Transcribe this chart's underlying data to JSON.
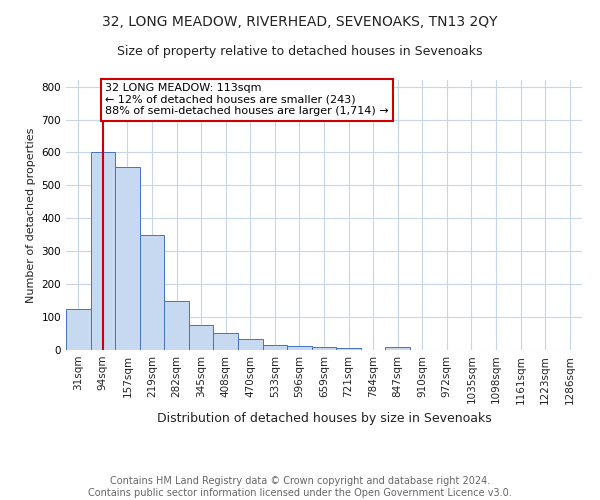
{
  "title": "32, LONG MEADOW, RIVERHEAD, SEVENOAKS, TN13 2QY",
  "subtitle": "Size of property relative to detached houses in Sevenoaks",
  "xlabel": "Distribution of detached houses by size in Sevenoaks",
  "ylabel": "Number of detached properties",
  "categories": [
    "31sqm",
    "94sqm",
    "157sqm",
    "219sqm",
    "282sqm",
    "345sqm",
    "408sqm",
    "470sqm",
    "533sqm",
    "596sqm",
    "659sqm",
    "721sqm",
    "784sqm",
    "847sqm",
    "910sqm",
    "972sqm",
    "1035sqm",
    "1098sqm",
    "1161sqm",
    "1223sqm",
    "1286sqm"
  ],
  "values": [
    125,
    600,
    555,
    350,
    148,
    75,
    52,
    33,
    15,
    12,
    10,
    5,
    0,
    8,
    0,
    0,
    0,
    0,
    0,
    0,
    0
  ],
  "bar_color": "#c6d9f1",
  "bar_edge_color": "#4472c4",
  "vline_x": 1,
  "vline_color": "#cc0000",
  "annotation_text": "32 LONG MEADOW: 113sqm\n← 12% of detached houses are smaller (243)\n88% of semi-detached houses are larger (1,714) →",
  "annotation_box_color": "#ffffff",
  "annotation_box_edge_color": "#cc0000",
  "ylim": [
    0,
    820
  ],
  "yticks": [
    0,
    100,
    200,
    300,
    400,
    500,
    600,
    700,
    800
  ],
  "footer": "Contains HM Land Registry data © Crown copyright and database right 2024.\nContains public sector information licensed under the Open Government Licence v3.0.",
  "background_color": "#ffffff",
  "grid_color": "#c8d4e8",
  "title_fontsize": 10,
  "subtitle_fontsize": 9,
  "xlabel_fontsize": 9,
  "ylabel_fontsize": 8,
  "tick_fontsize": 7.5,
  "footer_fontsize": 7,
  "ann_fontsize": 8
}
